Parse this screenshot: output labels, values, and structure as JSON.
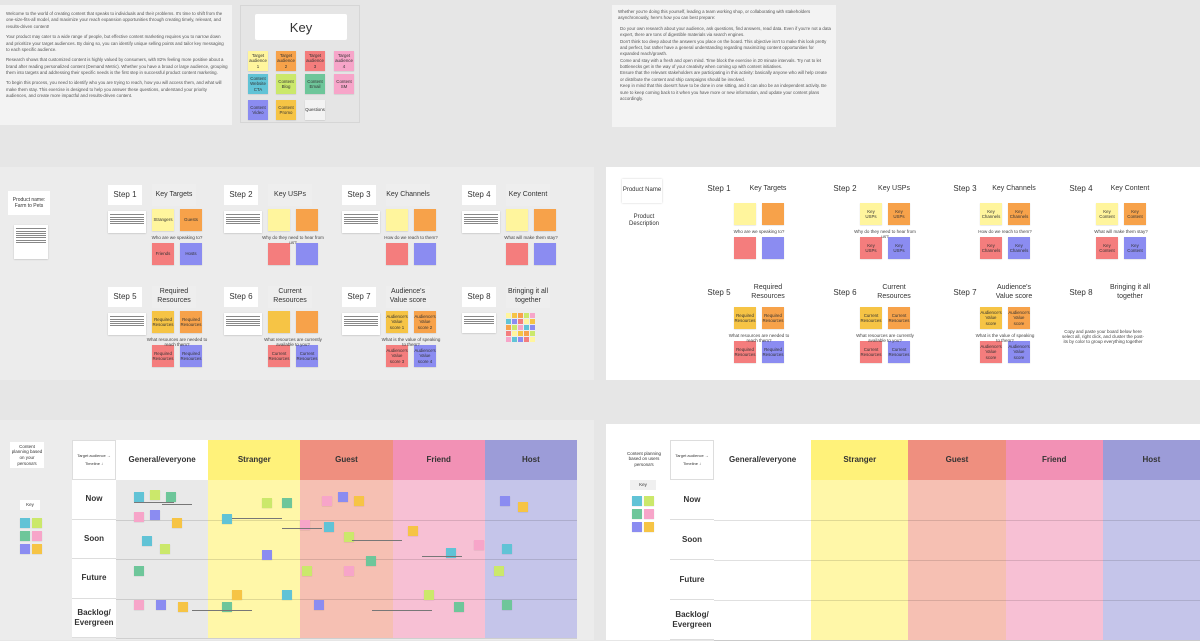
{
  "colors": {
    "yellow": "#fff59d",
    "orange": "#f7a24a",
    "red": "#f47d7d",
    "pink": "#f7a5c9",
    "blue": "#8b8cf1",
    "green": "#6ec69a",
    "lime": "#cbe86b",
    "teal": "#61c3d6",
    "gold": "#f6c445",
    "gray": "#f3f3f3",
    "col_yellow": "#fff27a",
    "col_red": "#ef8f7f",
    "col_pink": "#f291b5",
    "col_blue": "#9c9cd8"
  },
  "intro": {
    "p1": "Welcome to the world of creating content that speaks to individuals and their problems. It's time to shift from the one-size-fits-all model, and maximize your reach expansion opportunities through creating timely, relevant, and results-driven content!",
    "p2": "Your product may cater to a wide range of people, but effective content marketing requires you to narrow down and prioritize your target audiences. By doing so, you can identify unique selling points and tailor key messaging to each specific audience.",
    "p3": "Research shows that customized content is highly valued by consumers, with 82% feeling more positive about a brand after reading personalized content (Demand Metric). Whether you have a broad or large audience, grouping them into targets and addressing their specific needs is the first step in successful product content marketing.",
    "p4": "To begin this process, you need to identify who you are trying to reach, how you will access them, and what will make them stay. This exercise is designed to help you answer these questions, understand your priority audiences, and create more impactful and results-driven content."
  },
  "key": {
    "title": "Key",
    "items": [
      "Target audience 1",
      "Target audience 2",
      "Target audience 3",
      "Target audience 4",
      "Content Website CTA",
      "Content Blog",
      "Content Email",
      "Content SM",
      "Content Video",
      "Content Promo",
      "Questions"
    ]
  },
  "prep": {
    "intro": "Whether you're doing this yourself, leading a team working shop, or collaborating with stakeholders asynchronously, here's how you can best prepare:",
    "bullets": [
      "Do your own research about your audience, ask questions, find answers, read data. Even if you're not a data expert, there are tons of digestible materials via search engines.",
      "Don't think too deep about the answers you place on the board. This objective isn't to make this look pretty and perfect, but rather have a general understanding regarding maximizing content opportunities for expanded reach/growth.",
      "Come and stay with a fresh and open mind. Time block the exercise in 20 minute intervals. Try not to let bottlenecks get in the way of your creativity when coming up with content initiatives.",
      "Ensure that the relevant stakeholders are participating in this activity: basically anyone who will help create or distribute the content and ship campaigns should be involved.",
      "Keep in mind that this doesn't have to be done in one sitting, and it can also be an independent activity. Be sure to keep coming back to it when you have more or new information, and update your content plans accordingly."
    ]
  },
  "filled": {
    "product": "Product name: Farm to Pets",
    "steps": [
      {
        "step": "Step 1",
        "title": "Key Targets",
        "q": "Who are we speaking to?",
        "n": [
          "Strangers",
          "Guests",
          "Friends",
          "Hosts"
        ]
      },
      {
        "step": "Step 2",
        "title": "Key USPs",
        "q": "Why do they need to hear from us?",
        "n": [
          "",
          "",
          "",
          ""
        ]
      },
      {
        "step": "Step 3",
        "title": "Key Channels",
        "q": "How do we reach to them?",
        "n": [
          "",
          "",
          "",
          ""
        ]
      },
      {
        "step": "Step 4",
        "title": "Key Content",
        "q": "What will make them stay?",
        "n": [
          "",
          "",
          "",
          ""
        ]
      },
      {
        "step": "Step 5",
        "title": "Required Resources",
        "q": "What resources are needed to reach them?",
        "n": [
          "Required Resources",
          "Required Resources",
          "Required Resources",
          "Required Resources"
        ]
      },
      {
        "step": "Step 6",
        "title": "Current Resources",
        "q": "What resources are currently available to you?",
        "n": [
          "",
          "",
          "Current Resources",
          "Current Resources"
        ]
      },
      {
        "step": "Step 7",
        "title": "Audience's Value score",
        "q": "What is the value of speaking to them?",
        "n": [
          "Audience's Value score 1",
          "Audience's Value score 2",
          "Audience's Value score 3",
          "Audience's Value score 4"
        ]
      },
      {
        "step": "Step 8",
        "title": "Bringing it all together",
        "q": "",
        "n": []
      }
    ]
  },
  "blank": {
    "product": "Product Name",
    "desc": "Product Description",
    "steps": [
      {
        "step": "Step 1",
        "title": "Key Targets",
        "q": "Who are we speaking to?",
        "n": [
          "",
          "",
          "",
          ""
        ]
      },
      {
        "step": "Step 2",
        "title": "Key USPs",
        "q": "Why do they need to hear from us?",
        "n": [
          "Key USPs",
          "Key USPs",
          "Key USPs",
          "Key USPs"
        ]
      },
      {
        "step": "Step 3",
        "title": "Key Channels",
        "q": "How do we reach to them?",
        "n": [
          "Key Channels",
          "Key Channels",
          "Key Channels",
          "Key Channels"
        ]
      },
      {
        "step": "Step 4",
        "title": "Key Content",
        "q": "What will make them stay?",
        "n": [
          "Key Content",
          "Key Content",
          "Key Content",
          "Key Content"
        ]
      },
      {
        "step": "Step 5",
        "title": "Required Resources",
        "q": "What resources are needed to reach them?",
        "n": [
          "Required Resources",
          "Required Resources",
          "Required Resources",
          "Required Resources"
        ]
      },
      {
        "step": "Step 6",
        "title": "Current Resources",
        "q": "What resources are currently available to you?",
        "n": [
          "Current Resources",
          "Current Resources",
          "Current Resources",
          "Current Resources"
        ]
      },
      {
        "step": "Step 7",
        "title": "Audience's Value score",
        "q": "What is the value of speaking to them?",
        "n": [
          "Audience's Value score",
          "Audience's Value score",
          "Audience's Value score",
          "Audience's Value score"
        ]
      },
      {
        "step": "Step 8",
        "title": "Bringing it all together",
        "q": "Copy and paste your board below here select all, right click, and cluster the post-its by color to group everything together",
        "n": []
      }
    ]
  },
  "planning": {
    "title": "Content planning based on your persona's",
    "title_blank": "Content planning based on users persona's",
    "key": "Key",
    "corner_top": "Target audience →",
    "corner_bottom": "Timeline ↓",
    "columns": [
      "General/everyone",
      "Stranger",
      "Guest",
      "Friend",
      "Host"
    ],
    "rows": [
      "Now",
      "Soon",
      "Future",
      "Backlog/ Evergreen"
    ]
  }
}
